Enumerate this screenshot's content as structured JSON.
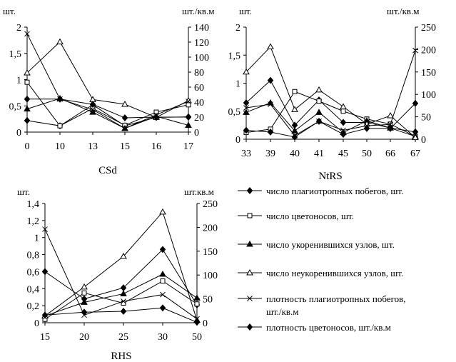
{
  "chart_data": [
    {
      "type": "line",
      "xlabel": "CSd",
      "y_unit_left": "шт.",
      "y_unit_right": "шт./кв.м",
      "categories": [
        "0",
        "10",
        "13",
        "15",
        "16",
        "17"
      ],
      "ylim_left": [
        0,
        2
      ],
      "ylim_right": [
        0,
        140
      ],
      "yticks_left": [
        "0",
        "0,5",
        "1",
        "1,5",
        "2"
      ],
      "yticks_right": [
        "0",
        "20",
        "40",
        "60",
        "80",
        "100",
        "120",
        "140"
      ],
      "grid": false,
      "series": [
        {
          "key": "s1",
          "axis": "left",
          "values": [
            0.22,
            0.12,
            0.52,
            0.12,
            0.28,
            0.29
          ]
        },
        {
          "key": "s2",
          "axis": "left",
          "values": [
            0.95,
            0.12,
            0.45,
            0.13,
            0.38,
            0.52
          ]
        },
        {
          "key": "s3",
          "axis": "left",
          "values": [
            0.44,
            0.64,
            0.38,
            0.07,
            0.3,
            0.13
          ]
        },
        {
          "key": "s4",
          "axis": "left",
          "values": [
            1.13,
            1.72,
            0.62,
            0.53,
            0.28,
            0.6
          ]
        },
        {
          "key": "s5",
          "axis": "right",
          "values": [
            131,
            44,
            30,
            5,
            23,
            41
          ]
        },
        {
          "key": "s6",
          "axis": "right",
          "values": [
            44,
            44,
            37,
            19,
            20,
            20
          ]
        }
      ]
    },
    {
      "type": "line",
      "xlabel": "NtRS",
      "y_unit_left": "шт.",
      "y_unit_right": "шт./кв.м",
      "categories": [
        "33",
        "39",
        "40",
        "41",
        "45",
        "50",
        "66",
        "67"
      ],
      "ylim_left": [
        0,
        2
      ],
      "ylim_right": [
        0,
        250
      ],
      "yticks_left": [
        "0",
        "0,5",
        "1",
        "1,5",
        "2"
      ],
      "yticks_right": [
        "0",
        "50",
        "100",
        "150",
        "200",
        "250"
      ],
      "grid": false,
      "series": [
        {
          "key": "s1",
          "axis": "left",
          "values": [
            0.65,
            1.05,
            0.25,
            0.7,
            0.3,
            0.3,
            0.2,
            0.13
          ]
        },
        {
          "key": "s2",
          "axis": "left",
          "values": [
            0.12,
            0.18,
            0.85,
            0.68,
            0.5,
            0.36,
            0.27,
            0.05
          ]
        },
        {
          "key": "s3",
          "axis": "left",
          "values": [
            0.48,
            0.65,
            0.15,
            0.48,
            0.12,
            0.33,
            0.2,
            0.05
          ]
        },
        {
          "key": "s4",
          "axis": "left",
          "values": [
            1.2,
            1.65,
            0.53,
            0.88,
            0.58,
            0.27,
            0.42,
            0.03
          ]
        },
        {
          "key": "s5",
          "axis": "right",
          "values": [
            70,
            78,
            8,
            40,
            20,
            30,
            33,
            198
          ]
        },
        {
          "key": "s6",
          "axis": "right",
          "values": [
            20,
            16,
            5,
            40,
            11,
            24,
            24,
            80
          ]
        }
      ]
    },
    {
      "type": "line",
      "xlabel": "RHS",
      "y_unit_left": "шт.",
      "y_unit_right": "шт.кв.м",
      "categories": [
        "15",
        "20",
        "25",
        "30",
        "50"
      ],
      "ylim_left": [
        0,
        1.4
      ],
      "ylim_right": [
        0,
        250
      ],
      "yticks_left": [
        "0",
        "0,2",
        "0,4",
        "0,6",
        "0,8",
        "1",
        "1,2",
        "1,4"
      ],
      "yticks_right": [
        "0",
        "50",
        "100",
        "150",
        "200",
        "250"
      ],
      "grid": false,
      "series": [
        {
          "key": "s1",
          "axis": "left",
          "values": [
            0.6,
            0.28,
            0.41,
            0.86,
            0.21
          ]
        },
        {
          "key": "s2",
          "axis": "left",
          "values": [
            0.04,
            0.35,
            0.23,
            0.49,
            0.22
          ]
        },
        {
          "key": "s3",
          "axis": "left",
          "values": [
            0.08,
            0.24,
            0.34,
            0.57,
            0.29
          ]
        },
        {
          "key": "s4",
          "axis": "left",
          "values": [
            0.08,
            0.42,
            0.78,
            1.3,
            0.03
          ]
        },
        {
          "key": "s5",
          "axis": "right",
          "values": [
            196,
            16,
            45,
            59,
            8
          ]
        },
        {
          "key": "s6",
          "axis": "right",
          "values": [
            16,
            22,
            24,
            31,
            1
          ]
        }
      ]
    }
  ],
  "legend": [
    {
      "key": "s1",
      "marker": "diamond-filled",
      "label": "число плагиотропных побегов, шт."
    },
    {
      "key": "s2",
      "marker": "square-open",
      "label": "число цветоносов, шт."
    },
    {
      "key": "s3",
      "marker": "triangle-filled",
      "label": "число укоренившихся узлов, шт."
    },
    {
      "key": "s4",
      "marker": "triangle-open",
      "label": "число неукоренившихся узлов, шт."
    },
    {
      "key": "s5",
      "marker": "cross",
      "label_lines": [
        "плотность плагиотропных побегов,",
        "шт./кв.м"
      ]
    },
    {
      "key": "s6",
      "marker": "diamond-filled",
      "label": "плотность цветоносов, шт./кв.м"
    }
  ]
}
